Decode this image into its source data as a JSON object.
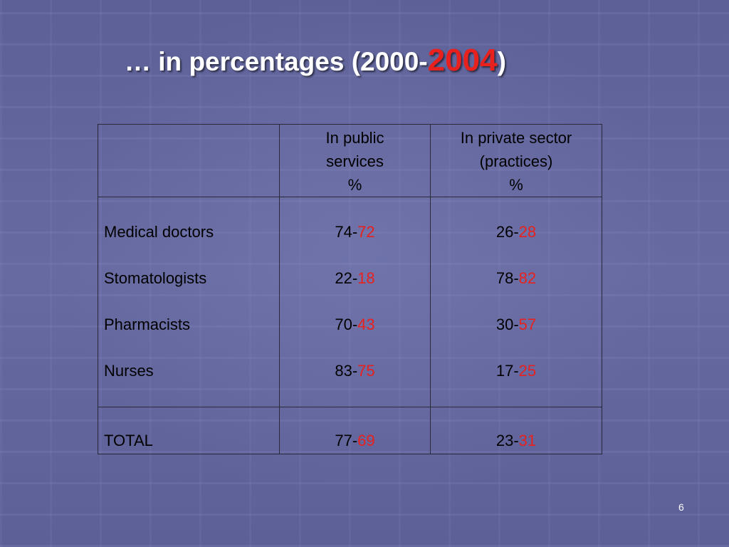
{
  "slide": {
    "title_prefix": "… in percentages (2000-",
    "title_year_red": "2004",
    "title_suffix": ")",
    "page_number": "6"
  },
  "table": {
    "header": {
      "col2": [
        "In public",
        "services",
        "%"
      ],
      "col3": [
        "In private sector",
        "(practices)",
        "%"
      ]
    },
    "rows": [
      {
        "label": "Medical doctors",
        "public_a": "74-",
        "public_b": "72",
        "private_a": "26-",
        "private_b": "28"
      },
      {
        "label": "Stomatologists",
        "public_a": "22-",
        "public_b": "18",
        "private_a": "78-",
        "private_b": "82"
      },
      {
        "label": "Pharmacists",
        "public_a": "70-",
        "public_b": "43",
        "private_a": "30-",
        "private_b": "57"
      },
      {
        "label": "Nurses",
        "public_a": "83-",
        "public_b": "75",
        "private_a": "17-",
        "private_b": "25"
      }
    ],
    "total": {
      "label": "TOTAL",
      "public_a": "77-",
      "public_b": "69",
      "private_a": "23-",
      "private_b": "31"
    }
  },
  "colors": {
    "accent_red": "#e8211e",
    "background": "#5a5e92"
  }
}
